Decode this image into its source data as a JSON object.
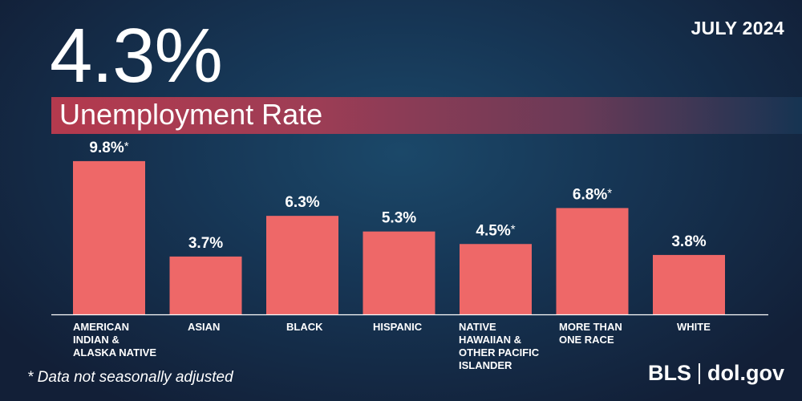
{
  "headline": "4.3%",
  "period": "JULY 2024",
  "subtitle": "Unemployment Rate",
  "footnote": "* Data not seasonally adjusted",
  "brand": {
    "org": "BLS",
    "site": "dol.gov"
  },
  "colors": {
    "bar": "#ee6868",
    "subtitle_band": "#b43a4e",
    "background": "#163554",
    "text": "#ffffff"
  },
  "chart_data": {
    "type": "bar",
    "title": "Unemployment Rate",
    "categories": [
      [
        "AMERICAN",
        "INDIAN &",
        "ALASKA NATIVE"
      ],
      [
        "ASIAN"
      ],
      [
        "BLACK"
      ],
      [
        "HISPANIC"
      ],
      [
        "NATIVE",
        "HAWAIIAN &",
        "OTHER PACIFIC",
        "ISLANDER"
      ],
      [
        "MORE THAN",
        "ONE RACE"
      ],
      [
        "WHITE"
      ]
    ],
    "values": [
      9.8,
      3.7,
      6.3,
      5.3,
      4.5,
      6.8,
      3.8
    ],
    "data_labels": [
      "9.8%",
      "3.7%",
      "6.3%",
      "5.3%",
      "4.5%",
      "6.8%",
      "3.8%"
    ],
    "not_seasonally_adjusted_marker": [
      true,
      false,
      false,
      false,
      true,
      true,
      false
    ],
    "marker_symbol": "*",
    "ylim": [
      0,
      10
    ],
    "grid": false,
    "legend": "none"
  }
}
